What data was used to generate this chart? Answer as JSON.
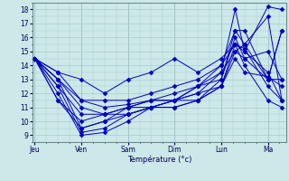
{
  "xlabel": "Température (°c)",
  "ylim": [
    8.5,
    18.5
  ],
  "yticks": [
    9,
    10,
    11,
    12,
    13,
    14,
    15,
    16,
    17,
    18
  ],
  "day_labels": [
    "Jeu",
    "Ven",
    "Sam",
    "Dim",
    "Lun",
    "Ma"
  ],
  "day_positions": [
    0,
    1,
    2,
    3,
    4,
    5
  ],
  "xlim": [
    -0.05,
    5.4
  ],
  "background_color": "#cce8e8",
  "grid_color": "#aacccc",
  "line_color": "#0000bb",
  "series": [
    {
      "x": [
        0,
        0.5,
        1.0,
        1.5,
        2.0,
        2.5,
        3.0,
        3.5,
        4.0,
        4.3,
        4.5,
        5.0,
        5.3
      ],
      "y": [
        14.5,
        13.5,
        11.5,
        11.0,
        11.2,
        11.5,
        11.5,
        12.5,
        13.0,
        16.5,
        15.5,
        13.0,
        16.5
      ]
    },
    {
      "x": [
        0,
        0.5,
        1.0,
        1.5,
        2.0,
        2.5,
        3.0,
        3.5,
        4.0,
        4.3,
        4.5,
        5.0,
        5.3
      ],
      "y": [
        14.5,
        13.0,
        9.5,
        10.0,
        11.0,
        11.0,
        11.5,
        12.0,
        13.5,
        18.0,
        15.0,
        18.2,
        18.0
      ]
    },
    {
      "x": [
        0,
        0.5,
        1.0,
        1.5,
        2.0,
        2.5,
        3.0,
        3.5,
        4.0,
        4.3,
        4.5,
        5.0,
        5.3
      ],
      "y": [
        14.5,
        12.5,
        9.2,
        9.5,
        10.5,
        11.0,
        11.0,
        11.5,
        13.0,
        16.0,
        14.5,
        15.0,
        13.0
      ]
    },
    {
      "x": [
        0,
        0.5,
        1.0,
        1.5,
        2.0,
        2.5,
        3.0,
        3.5,
        4.0,
        4.3,
        4.5,
        5.0,
        5.3
      ],
      "y": [
        14.5,
        12.0,
        9.0,
        9.2,
        10.0,
        11.0,
        11.0,
        11.5,
        12.5,
        15.5,
        14.0,
        11.5,
        11.0
      ]
    },
    {
      "x": [
        0,
        0.5,
        1.0,
        1.5,
        2.0,
        2.5,
        3.0,
        3.5,
        4.0,
        4.3,
        4.5,
        5.0,
        5.3
      ],
      "y": [
        14.5,
        11.5,
        9.5,
        10.0,
        10.5,
        11.0,
        11.5,
        12.0,
        12.5,
        14.5,
        13.5,
        13.2,
        12.5
      ]
    },
    {
      "x": [
        0,
        0.5,
        1.0,
        1.5,
        2.0,
        2.5,
        3.0,
        3.5,
        4.0,
        4.3,
        4.5,
        5.0,
        5.3
      ],
      "y": [
        14.5,
        12.5,
        10.5,
        10.5,
        11.0,
        11.5,
        11.5,
        12.5,
        13.5,
        15.0,
        14.5,
        13.0,
        13.0
      ]
    },
    {
      "x": [
        0,
        0.5,
        1.0,
        1.5,
        2.0,
        2.5,
        3.0,
        3.5,
        4.0,
        4.3,
        4.5,
        5.0,
        5.3
      ],
      "y": [
        14.5,
        13.0,
        11.5,
        11.5,
        11.5,
        12.0,
        12.5,
        13.0,
        14.0,
        15.5,
        15.2,
        12.5,
        11.5
      ]
    },
    {
      "x": [
        0,
        0.5,
        1.0,
        1.5,
        2.0,
        2.5,
        3.0,
        3.5,
        4.0,
        4.3,
        4.5,
        5.0,
        5.3
      ],
      "y": [
        14.5,
        13.5,
        13.0,
        12.0,
        13.0,
        13.5,
        14.5,
        13.5,
        14.5,
        15.5,
        15.0,
        13.5,
        11.5
      ]
    },
    {
      "x": [
        0,
        0.5,
        1.0,
        1.5,
        2.0,
        2.5,
        3.0,
        3.5,
        4.0,
        4.3,
        4.5,
        5.0,
        5.3
      ],
      "y": [
        14.5,
        11.5,
        10.0,
        10.5,
        10.5,
        11.0,
        11.5,
        11.5,
        12.5,
        15.0,
        15.5,
        17.5,
        11.5
      ]
    },
    {
      "x": [
        0,
        0.5,
        1.0,
        1.5,
        2.0,
        2.5,
        3.0,
        3.5,
        4.0,
        4.3,
        4.5,
        5.0,
        5.3
      ],
      "y": [
        14.5,
        13.0,
        11.0,
        10.5,
        11.0,
        11.5,
        12.0,
        12.5,
        14.0,
        16.5,
        16.5,
        13.0,
        16.5
      ]
    }
  ]
}
